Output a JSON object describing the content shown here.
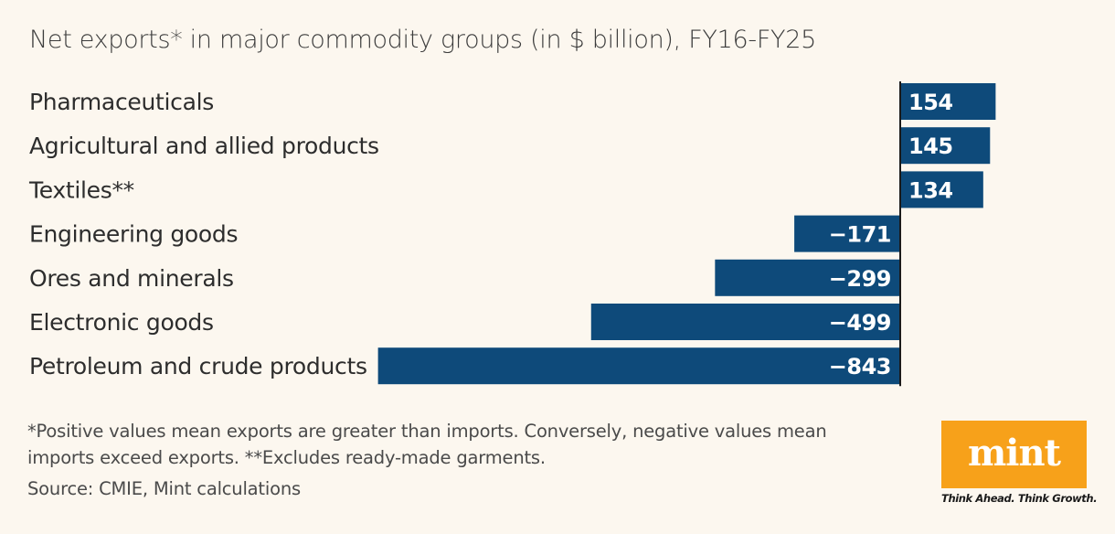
{
  "chart_data": {
    "type": "bar",
    "orientation": "horizontal",
    "title": "Net exports* in major commodity groups (in $ billion), FY16-FY25",
    "categories": [
      "Pharmaceuticals",
      "Agricultural and allied products",
      "Textiles**",
      "Engineering goods",
      "Ores and minerals",
      "Electronic goods",
      "Petroleum and crude products"
    ],
    "values": [
      154,
      145,
      134,
      -171,
      -299,
      -499,
      -843
    ],
    "value_labels": [
      "154",
      "145",
      "134",
      "−171",
      "−299",
      "−499",
      "−843"
    ],
    "xlim": [
      -843,
      154
    ],
    "unit": "$ billion",
    "bar_color": "#0e4a7a",
    "grid": false
  },
  "footnote": "*Positive values mean exports are greater than imports. Conversely, negative values mean imports exceed exports. **Excludes ready-made garments.",
  "source": "Source: CMIE, Mint calculations",
  "logo": {
    "text": "mint",
    "tagline": "Think Ahead. Think Growth.",
    "color": "#f7a11a"
  }
}
